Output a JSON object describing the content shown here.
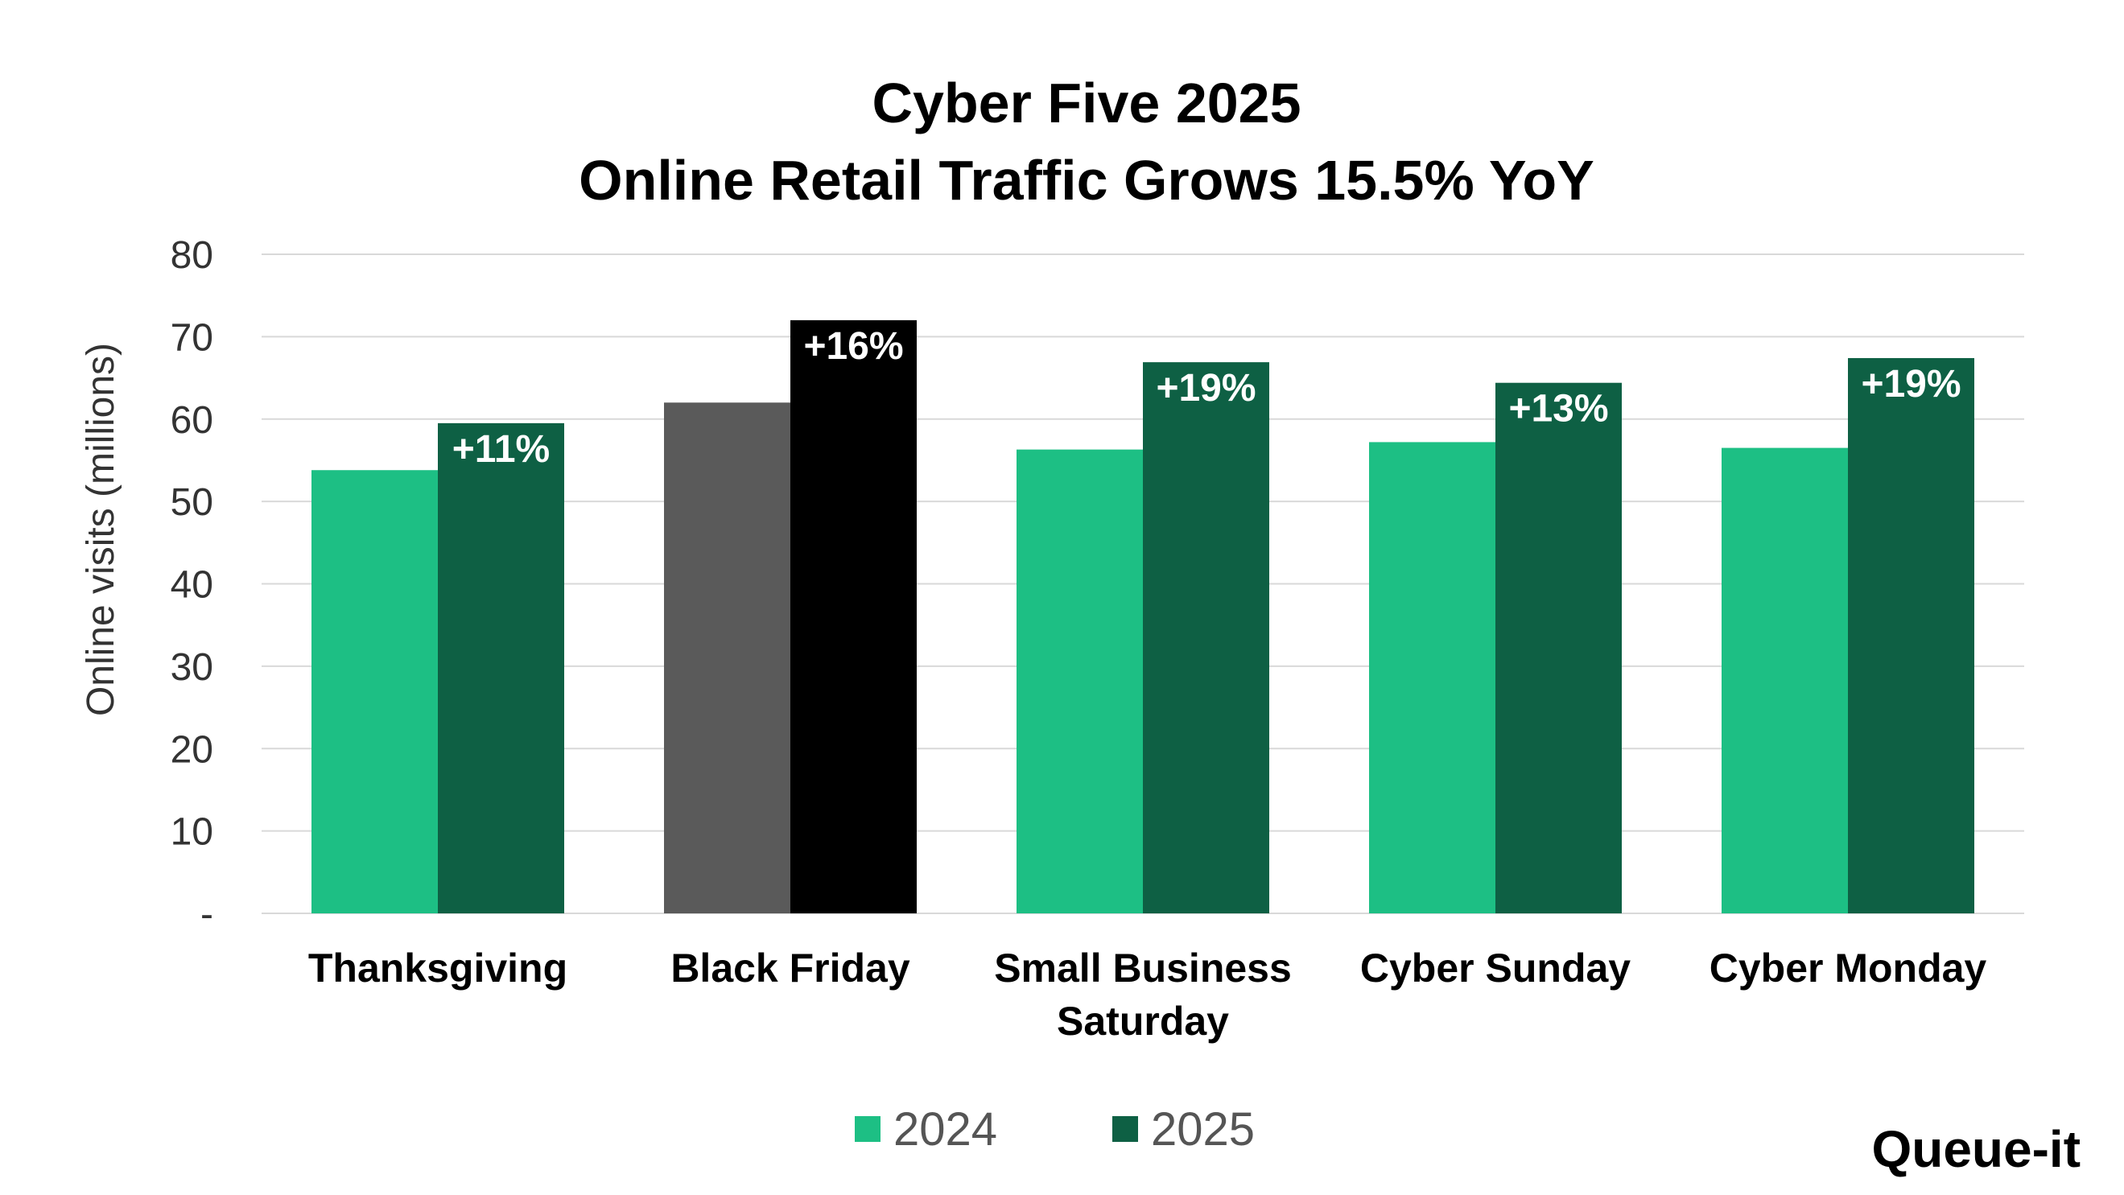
{
  "chart_data": {
    "type": "bar",
    "title": "Cyber Five 2025",
    "subtitle": "Online Retail Traffic Grows 15.5% YoY",
    "ylabel": "Online visits (millions)",
    "xlabel": "",
    "ylim": [
      0,
      80
    ],
    "y_ticks": [
      {
        "value": 0,
        "label": "-"
      },
      {
        "value": 10,
        "label": "10"
      },
      {
        "value": 20,
        "label": "20"
      },
      {
        "value": 30,
        "label": "30"
      },
      {
        "value": 40,
        "label": "40"
      },
      {
        "value": 50,
        "label": "50"
      },
      {
        "value": 60,
        "label": "60"
      },
      {
        "value": 70,
        "label": "70"
      },
      {
        "value": 80,
        "label": "80"
      }
    ],
    "grid": true,
    "legend_position": "bottom",
    "categories": [
      [
        "Thanksgiving"
      ],
      [
        "Black Friday"
      ],
      [
        "Small Business",
        "Saturday"
      ],
      [
        "Cyber Sunday"
      ],
      [
        "Cyber Monday"
      ]
    ],
    "series": [
      {
        "name": "2024",
        "color": "#1DBF84",
        "values": [
          53.8,
          62.0,
          56.3,
          57.2,
          56.5
        ]
      },
      {
        "name": "2025",
        "color": "#0E6044",
        "values": [
          59.5,
          72.0,
          66.9,
          64.4,
          67.4
        ]
      }
    ],
    "highlight": {
      "category_index": 1,
      "colors": {
        "2024": "#5A5A5A",
        "2025": "#000000"
      }
    },
    "data_labels": [
      "+11%",
      "+16%",
      "+19%",
      "+13%",
      "+19%"
    ]
  },
  "logo": {
    "text": "Queue-it"
  }
}
